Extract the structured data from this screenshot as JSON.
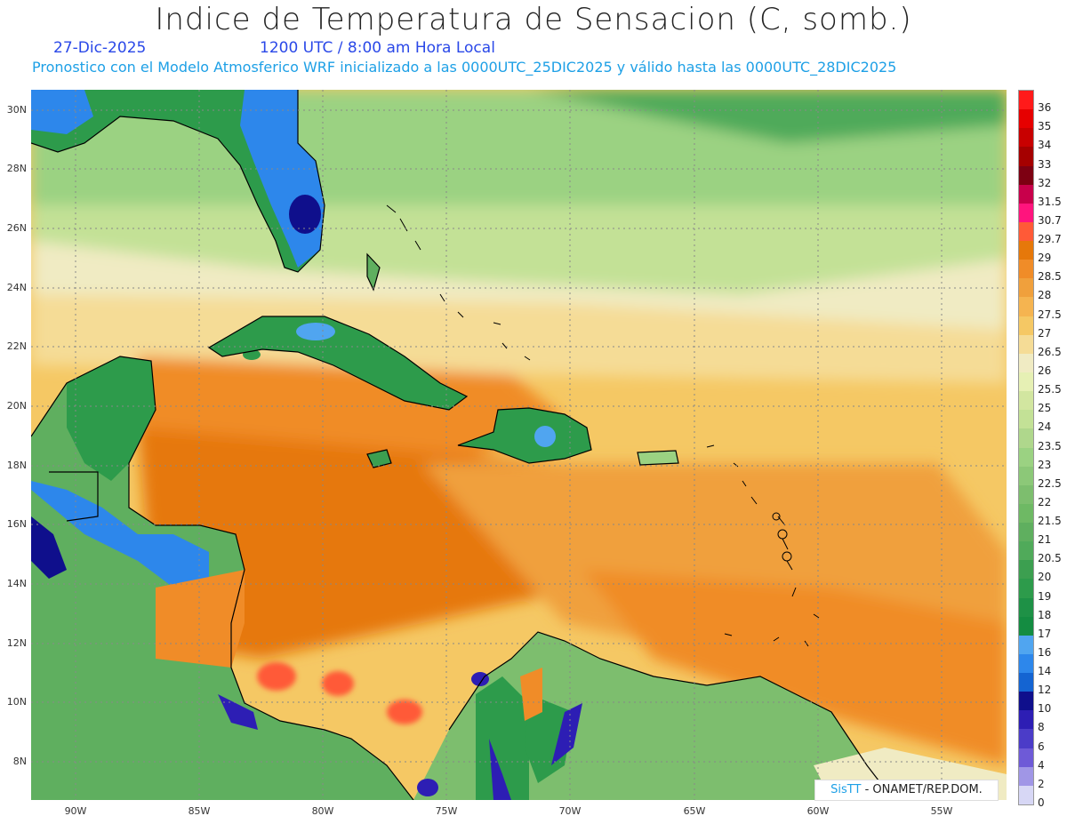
{
  "header": {
    "title": "Indice de Temperatura de Sensacion (C, somb.)",
    "date": "27-Dic-2025",
    "time": "1200 UTC / 8:00 am Hora Local",
    "subtitle": "Pronostico con el Modelo Atmosferico WRF inicializado a las 0000UTC_25DIC2025 y válido hasta las  0000UTC_28DIC2025"
  },
  "axes": {
    "lat_labels": [
      "30N",
      "28N",
      "26N",
      "24N",
      "22N",
      "20N",
      "18N",
      "16N",
      "14N",
      "12N",
      "10N",
      "8N"
    ],
    "lon_labels": [
      "90W",
      "85W",
      "80W",
      "75W",
      "70W",
      "65W",
      "60W",
      "55W"
    ]
  },
  "colorbar": {
    "levels": [
      {
        "label": "36",
        "color": "#ff1a1a"
      },
      {
        "label": "35",
        "color": "#e60000"
      },
      {
        "label": "34",
        "color": "#c80000"
      },
      {
        "label": "33",
        "color": "#a50000"
      },
      {
        "label": "32",
        "color": "#7d0012"
      },
      {
        "label": "31.5",
        "color": "#c8004b"
      },
      {
        "label": "30.7",
        "color": "#ff147d"
      },
      {
        "label": "29.7",
        "color": "#ff5a37"
      },
      {
        "label": "29",
        "color": "#e6780a"
      },
      {
        "label": "28.5",
        "color": "#f08c28"
      },
      {
        "label": "28",
        "color": "#f0a03c"
      },
      {
        "label": "27.5",
        "color": "#f5b450"
      },
      {
        "label": "27",
        "color": "#f5c864"
      },
      {
        "label": "26.5",
        "color": "#f5dc96"
      },
      {
        "label": "26",
        "color": "#f0ebc3"
      },
      {
        "label": "25.5",
        "color": "#e6f0b4"
      },
      {
        "label": "25",
        "color": "#d2e6a0"
      },
      {
        "label": "24",
        "color": "#c3e196"
      },
      {
        "label": "23.5",
        "color": "#afd78c"
      },
      {
        "label": "23",
        "color": "#9bd282"
      },
      {
        "label": "22.5",
        "color": "#8cc878"
      },
      {
        "label": "22",
        "color": "#7dbe6e"
      },
      {
        "label": "21.5",
        "color": "#6eb964"
      },
      {
        "label": "21",
        "color": "#5faf5f"
      },
      {
        "label": "20.5",
        "color": "#50aa5a"
      },
      {
        "label": "20",
        "color": "#3c9f50"
      },
      {
        "label": "19",
        "color": "#2d9b4b"
      },
      {
        "label": "18",
        "color": "#1e9146"
      },
      {
        "label": "17",
        "color": "#148c41"
      },
      {
        "label": "16",
        "color": "#50a5f0"
      },
      {
        "label": "14",
        "color": "#2d87eb"
      },
      {
        "label": "12",
        "color": "#1464d2"
      },
      {
        "label": "10",
        "color": "#0f0f8c"
      },
      {
        "label": "8",
        "color": "#2d1eb4"
      },
      {
        "label": "6",
        "color": "#4b3cc8"
      },
      {
        "label": "4",
        "color": "#6e5ad7"
      },
      {
        "label": "2",
        "color": "#a096e6"
      },
      {
        "label": "0",
        "color": "#d7d7f5"
      }
    ]
  },
  "credit": {
    "brand": "SisTT",
    "text": " - ONAMET/REP.DOM."
  }
}
